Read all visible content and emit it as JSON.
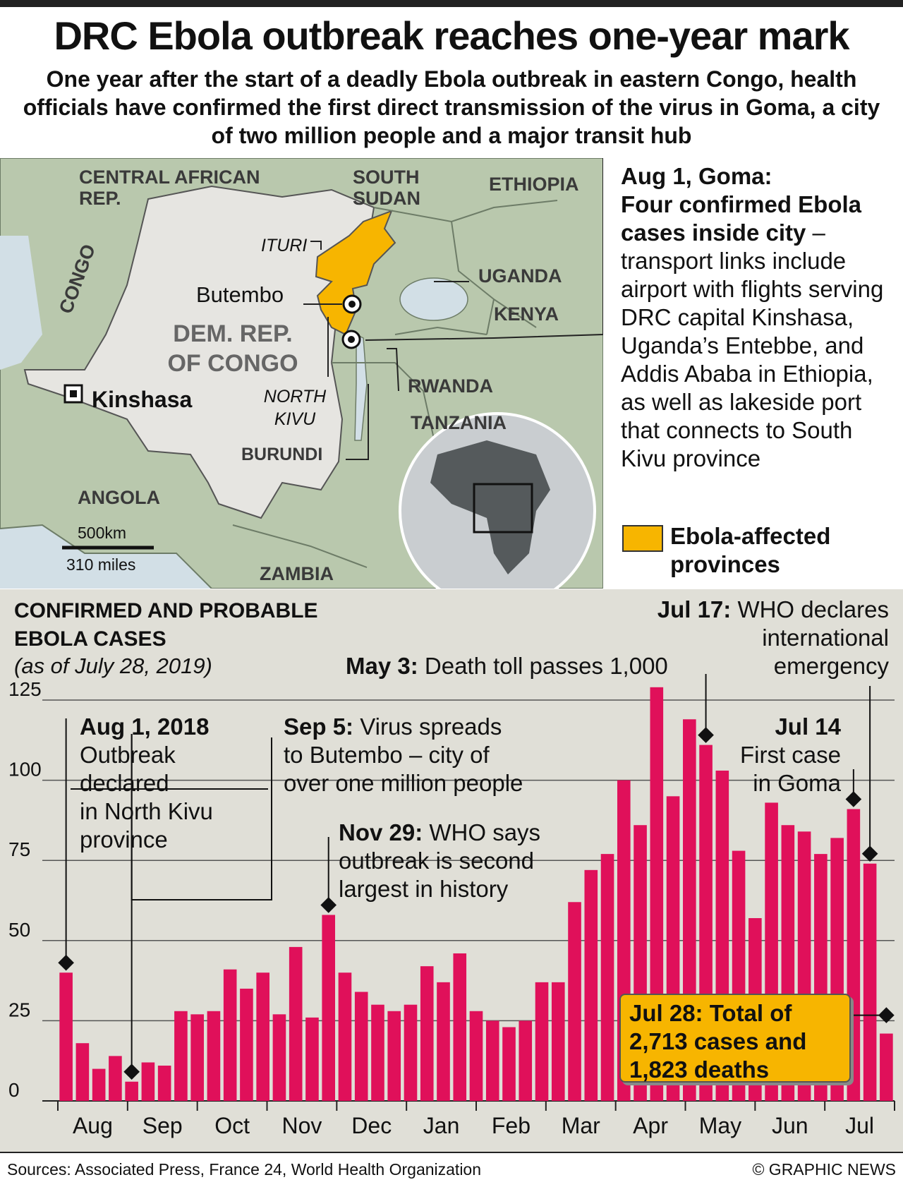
{
  "title": "DRC Ebola outbreak reaches one-year mark",
  "subtitle": "One year after the start of a deadly Ebola outbreak in eastern Congo, health officials have confirmed the first direct transmission of the virus in Goma, a city of two million people and a major transit hub",
  "map": {
    "countries": [
      "CENTRAL AFRICAN REP.",
      "SOUTH SUDAN",
      "ETHIOPIA",
      "UGANDA",
      "KENYA",
      "RWANDA",
      "TANZANIA",
      "BURUNDI",
      "ANGOLA",
      "ZAMBIA",
      "CONGO"
    ],
    "drc_label": [
      "DEM. REP.",
      "OF CONGO"
    ],
    "provinces": [
      "ITURI",
      "NORTH",
      "KIVU"
    ],
    "cities": [
      "Butembo",
      "Kinshasa"
    ],
    "scale": [
      "500km",
      "310 miles"
    ],
    "colors": {
      "land": "#b9c8ad",
      "drc": "#e6e5e1",
      "water": "#d2dfe6",
      "affected": "#f7b500"
    }
  },
  "goma_note": {
    "heading": "Aug 1, Goma:",
    "bold": "Four confirmed Ebola cases inside city",
    "text": " – transport links include airport with flights serving DRC capital Kinshasa, Uganda’s Entebbe, and Addis Ababa in Ethiopia, as well as lakeside port that connects to South Kivu province"
  },
  "legend": {
    "label": "Ebola-affected provinces",
    "color": "#f7b500"
  },
  "chart_heading": [
    "CONFIRMED AND PROBABLE",
    "EBOLA CASES"
  ],
  "chart_sub": "(as of July 28, 2019)",
  "annotations": {
    "aug1": {
      "bold": "Aug 1, 2018",
      "lines": [
        "Outbreak",
        "declared",
        "in North Kivu",
        "province"
      ]
    },
    "sep5": {
      "bold": "Sep 5:",
      "lines": [
        " Virus spreads",
        "to Butembo – city of",
        "over one million people"
      ]
    },
    "nov29": {
      "bold": "Nov 29:",
      "lines": [
        " WHO says",
        "outbreak is second",
        "largest in history"
      ]
    },
    "may3": {
      "bold": "May 3:",
      "text": " Death toll passes 1,000"
    },
    "jul17": {
      "bold": "Jul 17:",
      "lines": [
        " WHO declares",
        "international",
        "emergency"
      ]
    },
    "jul14": {
      "bold": "Jul 14",
      "lines": [
        "First case",
        "in Goma"
      ]
    },
    "total": {
      "lines": [
        "Jul 28: Total of",
        "2,713 cases and",
        "1,823 deaths"
      ]
    }
  },
  "chart_data": {
    "type": "bar",
    "title": "CONFIRMED AND PROBABLE EBOLA CASES",
    "ylim": [
      0,
      125
    ],
    "yticks": [
      0,
      25,
      50,
      75,
      100,
      125
    ],
    "month_labels": [
      "Aug",
      "Sep",
      "Oct",
      "Nov",
      "Dec",
      "Jan",
      "Feb",
      "Mar",
      "Apr",
      "May",
      "Jun",
      "Jul"
    ],
    "values": [
      40,
      18,
      10,
      14,
      6,
      12,
      11,
      28,
      27,
      28,
      41,
      35,
      40,
      27,
      48,
      26,
      58,
      40,
      34,
      30,
      28,
      30,
      42,
      37,
      46,
      28,
      25,
      23,
      25,
      37,
      37,
      62,
      72,
      77,
      100,
      86,
      129,
      95,
      119,
      111,
      103,
      78,
      57,
      93,
      86,
      84,
      77,
      82,
      91,
      74,
      21
    ],
    "colors": {
      "bars": "#e0105a",
      "background": "#e0dfd7"
    }
  },
  "footer": {
    "sources": "Sources: Associated Press, France 24, World Health Organization",
    "credit": "© GRAPHIC NEWS"
  }
}
